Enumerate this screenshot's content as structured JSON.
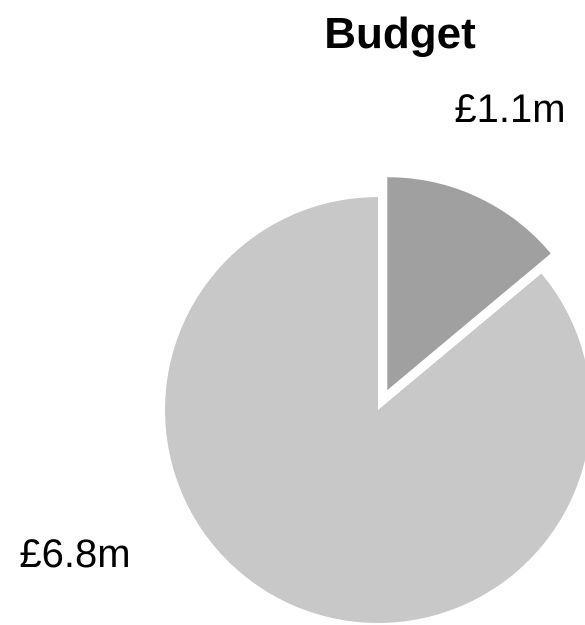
{
  "chart_data": {
    "type": "pie",
    "title": "Budget",
    "slices": [
      {
        "label": "£1.1m",
        "value": 1.1,
        "color": "#a0a0a0",
        "exploded": true
      },
      {
        "label": "£6.8m",
        "value": 6.8,
        "color": "#c8c8c8",
        "exploded": false
      }
    ],
    "start_angle_deg": 0,
    "direction": "clockwise",
    "legend": "none"
  }
}
